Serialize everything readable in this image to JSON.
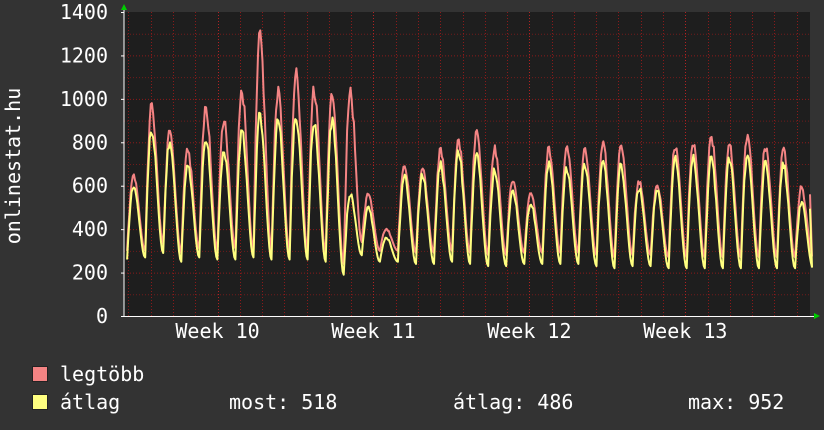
{
  "colors": {
    "background": "#333333",
    "plot_background": "#1e1e1e",
    "grid": "#8b1a1a",
    "max_series": "#f48484",
    "avg_series": "#ffff80",
    "axis_arrow": "#00cc00"
  },
  "legend": {
    "max_label": "legtöbb",
    "avg_label": "átlag",
    "now": "most: 518",
    "average": "átlag: 486",
    "max": "max: 952"
  },
  "chart_data": {
    "type": "line",
    "ylabel": "onlinestat.hu",
    "ylim": [
      0,
      1400
    ],
    "yticks": [
      "0",
      "200",
      "400",
      "600",
      "800",
      "1000",
      "1200",
      "1400"
    ],
    "ytick_values": [
      0,
      200,
      400,
      600,
      800,
      1000,
      1200,
      1400
    ],
    "xlim": [
      9.4,
      13.8
    ],
    "xticks": [
      "Week 10",
      "Week 11",
      "Week 12",
      "Week 13"
    ],
    "xtick_values": [
      10,
      11,
      12,
      13
    ],
    "grid": true,
    "legend_position": "bottom",
    "series": [
      {
        "name": "legtöbb",
        "color": "#f48484",
        "peaks": [
          650,
          960,
          850,
          760,
          960,
          900,
          1030,
          1300,
          1030,
          1120,
          1040,
          1030,
          1030,
          560,
          400,
          700,
          680,
          760,
          800,
          840,
          770,
          620,
          570,
          770,
          780,
          760,
          800,
          780,
          620,
          600,
          780,
          800,
          830,
          790,
          820,
          780,
          760,
          590
        ],
        "troughs": [
          300,
          300,
          330,
          290,
          310,
          300,
          310,
          300,
          300,
          300,
          300,
          290,
          240,
          340,
          300,
          300,
          290,
          290,
          300,
          290,
          280,
          280,
          290,
          290,
          290,
          290,
          280,
          270,
          280,
          280,
          270,
          270,
          270,
          270,
          270,
          270,
          270,
          270
        ]
      },
      {
        "name": "átlag",
        "color": "#ffff80",
        "peaks": [
          600,
          860,
          800,
          700,
          820,
          760,
          850,
          920,
          900,
          920,
          900,
          900,
          560,
          500,
          360,
          650,
          650,
          700,
          760,
          740,
          670,
          580,
          520,
          700,
          680,
          700,
          720,
          690,
          590,
          580,
          720,
          730,
          730,
          720,
          740,
          700,
          700,
          520
        ],
        "troughs": [
          260,
          270,
          290,
          250,
          270,
          260,
          260,
          270,
          260,
          260,
          260,
          250,
          190,
          280,
          250,
          250,
          240,
          240,
          250,
          240,
          230,
          230,
          240,
          240,
          240,
          240,
          230,
          220,
          230,
          230,
          220,
          220,
          220,
          220,
          220,
          220,
          220,
          220
        ]
      }
    ]
  }
}
